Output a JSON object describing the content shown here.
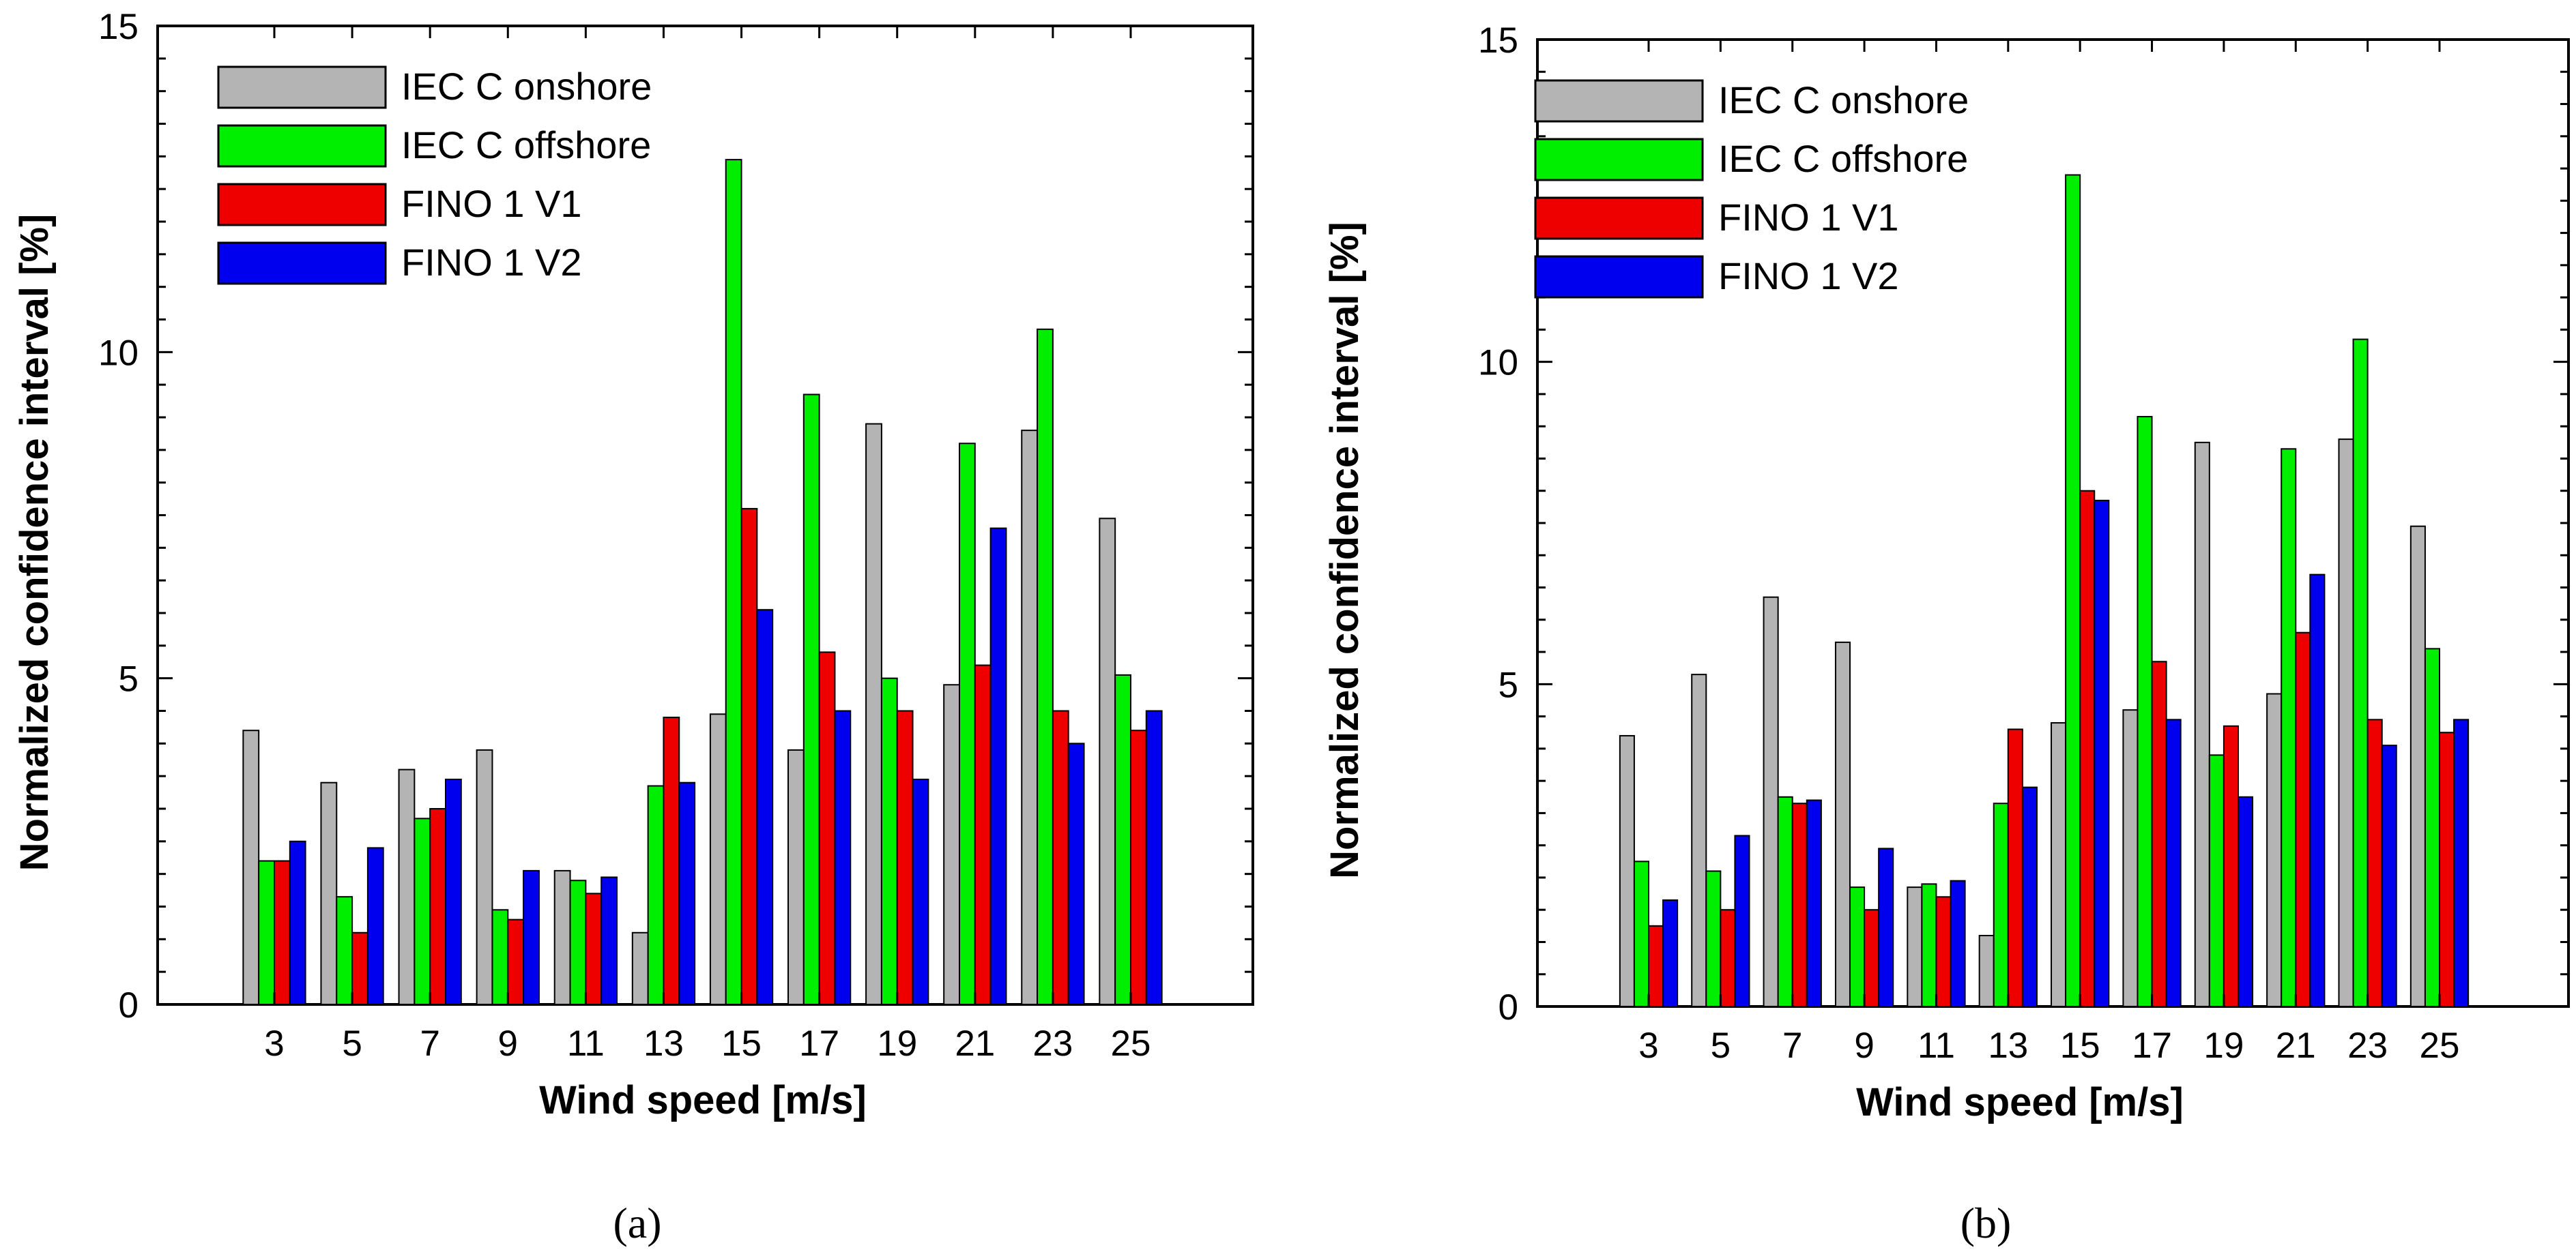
{
  "chart_data": [
    {
      "type": "bar",
      "caption": "(a)",
      "xlabel": "Wind speed [m/s]",
      "ylabel": "Normalized confidence interval [%]",
      "ylim": [
        0,
        15
      ],
      "yticks": [
        "0",
        "5",
        "10",
        "15"
      ],
      "categories": [
        "3",
        "5",
        "7",
        "9",
        "11",
        "13",
        "15",
        "17",
        "19",
        "21",
        "23",
        "25"
      ],
      "legend_position": "top-left",
      "series": [
        {
          "name": "IEC C onshore",
          "color": "#b4b4b4",
          "values": [
            4.2,
            3.4,
            3.6,
            3.9,
            2.05,
            1.1,
            4.45,
            3.9,
            8.9,
            4.9,
            8.8,
            7.45
          ]
        },
        {
          "name": "IEC C offshore",
          "color": "#00ee00",
          "values": [
            2.2,
            1.65,
            2.85,
            1.45,
            1.9,
            3.35,
            12.95,
            9.35,
            5.0,
            8.6,
            10.35,
            5.05
          ]
        },
        {
          "name": "FINO 1 V1",
          "color": "#ee0000",
          "values": [
            2.2,
            1.1,
            3.0,
            1.3,
            1.7,
            4.4,
            7.6,
            5.4,
            4.5,
            5.2,
            4.5,
            4.2
          ]
        },
        {
          "name": "FINO 1 V2",
          "color": "#0000ee",
          "values": [
            2.5,
            2.4,
            3.45,
            2.05,
            1.95,
            3.4,
            6.05,
            4.5,
            3.45,
            7.3,
            4.0,
            4.5
          ]
        }
      ]
    },
    {
      "type": "bar",
      "caption": "(b)",
      "xlabel": "Wind speed [m/s]",
      "ylabel": "Normalized confidence interval [%]",
      "ylim": [
        0,
        15
      ],
      "yticks": [
        "0",
        "5",
        "10",
        "15"
      ],
      "categories": [
        "3",
        "5",
        "7",
        "9",
        "11",
        "13",
        "15",
        "17",
        "19",
        "21",
        "23",
        "25"
      ],
      "legend_position": "top-left",
      "series": [
        {
          "name": "IEC C onshore",
          "color": "#b4b4b4",
          "values": [
            4.2,
            5.15,
            6.35,
            5.65,
            1.85,
            1.1,
            4.4,
            4.6,
            8.75,
            4.85,
            8.8,
            7.45
          ]
        },
        {
          "name": "IEC C offshore",
          "color": "#00ee00",
          "values": [
            2.25,
            2.1,
            3.25,
            1.85,
            1.9,
            3.15,
            12.9,
            9.15,
            3.9,
            8.65,
            10.35,
            5.55
          ]
        },
        {
          "name": "FINO 1 V1",
          "color": "#ee0000",
          "values": [
            1.25,
            1.5,
            3.15,
            1.5,
            1.7,
            4.3,
            8.0,
            5.35,
            4.35,
            5.8,
            4.45,
            4.25
          ]
        },
        {
          "name": "FINO 1 V2",
          "color": "#0000ee",
          "values": [
            1.65,
            2.65,
            3.2,
            2.45,
            1.95,
            3.4,
            7.85,
            4.45,
            3.25,
            6.7,
            4.05,
            4.45
          ]
        }
      ]
    }
  ]
}
